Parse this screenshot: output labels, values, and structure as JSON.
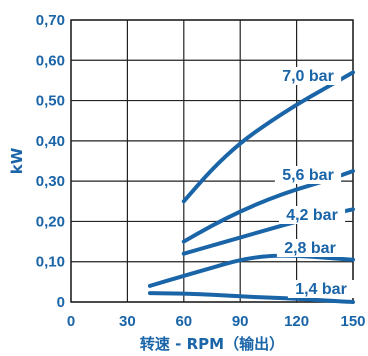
{
  "chart_data": {
    "type": "line",
    "xlabel": "转速 - RPM（输出）",
    "ylabel": "kW",
    "xlim": [
      0,
      150
    ],
    "ylim": [
      0,
      0.7
    ],
    "x_ticks": [
      "0",
      "30",
      "60",
      "90",
      "120",
      "150"
    ],
    "y_ticks": [
      "0",
      "0,10",
      "0,20",
      "0,30",
      "0,40",
      "0,50",
      "0,60",
      "0,70"
    ],
    "grid": true,
    "colors": {
      "line": "#1a64a8",
      "grid": "#222222",
      "text": "#1a64a8"
    },
    "series": [
      {
        "name": "7,0 bar",
        "x": [
          60,
          75,
          90,
          105,
          120,
          135,
          150
        ],
        "y": [
          0.25,
          0.33,
          0.395,
          0.445,
          0.49,
          0.53,
          0.57
        ]
      },
      {
        "name": "5,6 bar",
        "x": [
          60,
          75,
          90,
          105,
          120,
          135,
          150
        ],
        "y": [
          0.15,
          0.19,
          0.225,
          0.255,
          0.28,
          0.3,
          0.325
        ]
      },
      {
        "name": "4,2 bar",
        "x": [
          60,
          75,
          90,
          105,
          120,
          135,
          150
        ],
        "y": [
          0.12,
          0.14,
          0.16,
          0.18,
          0.2,
          0.215,
          0.23
        ]
      },
      {
        "name": "2,8 bar",
        "x": [
          42,
          60,
          75,
          90,
          105,
          120,
          135,
          150
        ],
        "y": [
          0.04,
          0.065,
          0.085,
          0.105,
          0.115,
          0.115,
          0.11,
          0.105
        ]
      },
      {
        "name": "1,4 bar",
        "x": [
          42,
          60,
          75,
          90,
          105,
          120,
          135,
          150
        ],
        "y": [
          0.022,
          0.021,
          0.018,
          0.014,
          0.011,
          0.008,
          0.004,
          0.0
        ]
      }
    ]
  }
}
